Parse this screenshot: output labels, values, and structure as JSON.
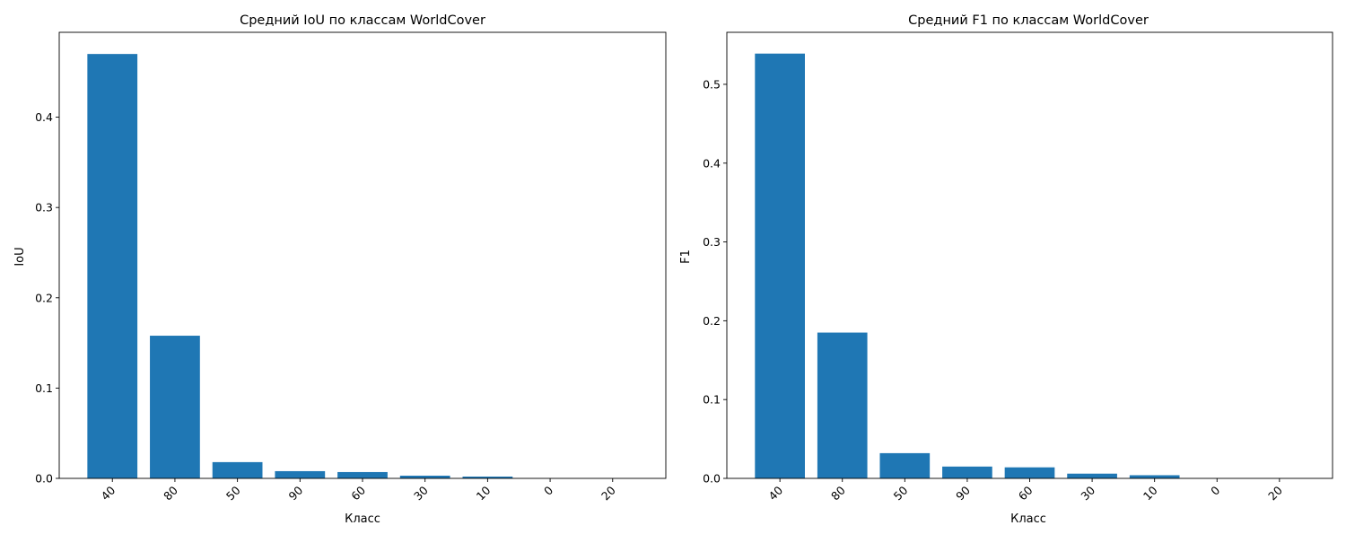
{
  "chart_data": [
    {
      "type": "bar",
      "title": "Средний IoU по классам WorldCover",
      "xlabel": "Класс",
      "ylabel": "IoU",
      "categories": [
        "40",
        "80",
        "50",
        "90",
        "60",
        "30",
        "10",
        "0",
        "20"
      ],
      "values": [
        0.47,
        0.158,
        0.018,
        0.008,
        0.007,
        0.003,
        0.002,
        0.0,
        0.0
      ],
      "ylim": [
        0,
        0.494
      ],
      "yticks": [
        0.0,
        0.1,
        0.2,
        0.3,
        0.4
      ],
      "ytick_labels": [
        "0.0",
        "0.1",
        "0.2",
        "0.3",
        "0.4"
      ],
      "grid": false,
      "bar_color": "#1f77b4"
    },
    {
      "type": "bar",
      "title": "Средний F1 по классам WorldCover",
      "xlabel": "Класс",
      "ylabel": "F1",
      "categories": [
        "40",
        "80",
        "50",
        "90",
        "60",
        "30",
        "10",
        "0",
        "20"
      ],
      "values": [
        0.539,
        0.185,
        0.032,
        0.015,
        0.014,
        0.006,
        0.004,
        0.0,
        0.0
      ],
      "ylim": [
        0,
        0.566
      ],
      "yticks": [
        0.0,
        0.1,
        0.2,
        0.3,
        0.4,
        0.5
      ],
      "ytick_labels": [
        "0.0",
        "0.1",
        "0.2",
        "0.3",
        "0.4",
        "0.5"
      ],
      "grid": false,
      "bar_color": "#1f77b4"
    }
  ]
}
